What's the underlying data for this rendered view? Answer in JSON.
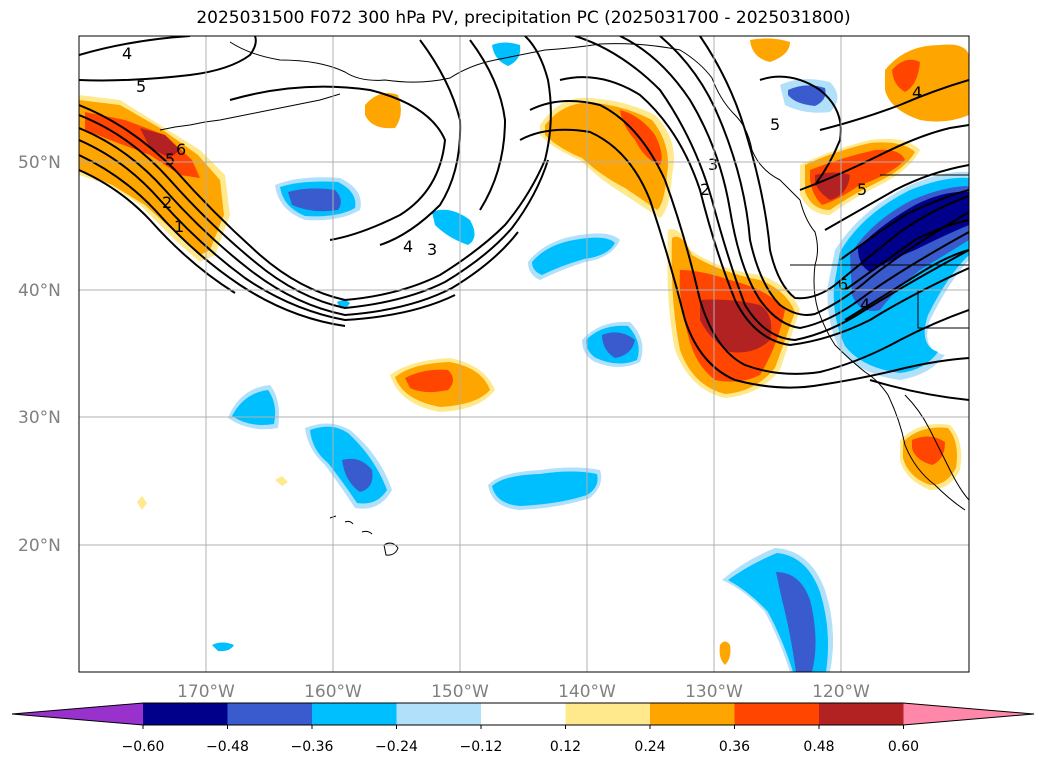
{
  "title": "2025031500 F072 300 hPa PV, precipitation PC (2025031700 - 2025031800)",
  "lat_labels": [
    "50°N",
    "40°N",
    "30°N",
    "20°N"
  ],
  "lon_labels": [
    "170°W",
    "160°W",
    "150°W",
    "140°W",
    "130°W",
    "120°W"
  ],
  "colorbar": {
    "tick_labels": [
      "−0.60",
      "−0.48",
      "−0.36",
      "−0.24",
      "−0.12",
      "0.12",
      "0.24",
      "0.36",
      "0.48",
      "0.60"
    ],
    "colors": [
      "#9932cc",
      "#00008b",
      "#3a5bcd",
      "#00bfff",
      "#b0e0fa",
      "#ffffff",
      "#ffe98c",
      "#ffa500",
      "#ff4500",
      "#b22222",
      "#ff88aa"
    ]
  },
  "pv_contour_labels": [
    "4",
    "5",
    "5",
    "6",
    "2",
    "1",
    "4",
    "3",
    "5",
    "3",
    "2",
    "4",
    "5",
    "6",
    "4"
  ]
}
